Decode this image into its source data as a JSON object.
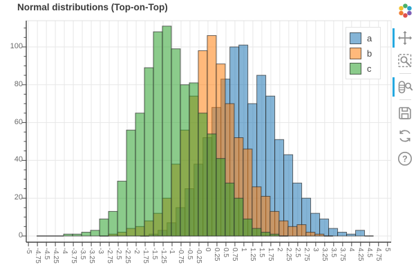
{
  "title": "Normal distributions (Top-on-Top)",
  "legend": {
    "items": [
      {
        "label": "a",
        "color": "#1f77b4"
      },
      {
        "label": "b",
        "color": "#ff7f0e"
      },
      {
        "label": "c",
        "color": "#2ca02c"
      }
    ]
  },
  "toolbar": {
    "logo": "bokeh-logo",
    "tools": [
      {
        "name": "pan",
        "active": true
      },
      {
        "name": "box-zoom",
        "active": false
      },
      {
        "name": "wheel-zoom",
        "active": true
      },
      {
        "name": "save",
        "active": false
      },
      {
        "name": "reset",
        "active": false
      },
      {
        "name": "help",
        "active": false
      }
    ],
    "active_indicator_color": "#26a9e0"
  },
  "chart_data": {
    "type": "bar",
    "subtype": "overlaid-histograms",
    "title": "Normal distributions (Top-on-Top)",
    "xlabel": "",
    "ylabel": "",
    "x_range": [
      -5.06,
      5.1
    ],
    "y_range": [
      -3.28,
      113.87
    ],
    "grid": true,
    "legend_position": "top_right",
    "fill_alpha": 0.55,
    "line_color": "#2f2f2f",
    "grid_color": "#e7e7e7",
    "axis_color": "#444444",
    "tick_label_color": "#696969",
    "xticks": {
      "values": [
        -5,
        -4.75,
        -4.5,
        -4.25,
        -4,
        -3.75,
        -3.5,
        -3.25,
        -3,
        -2.75,
        -2.5,
        -2.25,
        -2,
        -1.75,
        -1.5,
        -1.25,
        -1,
        -0.75,
        -0.5,
        -0.25,
        0,
        0.25,
        0.5,
        0.75,
        1,
        1.25,
        1.5,
        1.75,
        2,
        2.25,
        2.5,
        2.75,
        3,
        3.25,
        3.5,
        3.75,
        4,
        4.25,
        4.5,
        4.75,
        5
      ],
      "labels": [
        "-5",
        "-4.75",
        "-4.5",
        "-4.25",
        "-4",
        "-3.75",
        "-3.5",
        "-3.25",
        "-3",
        "-2.75",
        "-2.5",
        "-2.25",
        "-2",
        "-1.75",
        "-1.5",
        "-1.25",
        "-1",
        "-0.75",
        "-0.5",
        "-0.25",
        "0",
        "0.25",
        "0.5",
        "0.75",
        "1",
        "1.25",
        "1.5",
        "1.75",
        "2",
        "2.25",
        "2.5",
        "2.75",
        "3",
        "3.25",
        "3.5",
        "3.75",
        "4",
        "4.25",
        "4.5",
        "4.75",
        "5"
      ]
    },
    "yticks": {
      "values": [
        0,
        20,
        40,
        60,
        80,
        100
      ],
      "labels": [
        "0",
        "20",
        "40",
        "60",
        "80",
        "100"
      ]
    },
    "y_minor_step": 5,
    "bin_width": 0.25,
    "series": [
      {
        "name": "a",
        "color": "#1f77b4",
        "bin_start": -1.89,
        "counts": [
          0,
          1,
          3,
          7,
          15,
          25,
          38,
          52,
          68,
          83,
          100,
          101,
          70,
          85,
          74,
          51,
          43,
          28,
          20,
          12,
          9,
          4,
          2,
          1,
          3,
          0
        ]
      },
      {
        "name": "b",
        "color": "#ff7f0e",
        "bin_start": -3.02,
        "counts": [
          0,
          1,
          2,
          4,
          5,
          8,
          12,
          20,
          38,
          56,
          74,
          98,
          106,
          91,
          70,
          52,
          46,
          26,
          21,
          13,
          8,
          5,
          6,
          2,
          1,
          0
        ]
      },
      {
        "name": "c",
        "color": "#2ca02c",
        "bin_start": -4.77,
        "counts": [
          0,
          0,
          0,
          1,
          1,
          2,
          3,
          9,
          13,
          29,
          56,
          65,
          89,
          108,
          111,
          99,
          80,
          81,
          65,
          54,
          41,
          28,
          20,
          9,
          4,
          2,
          1,
          0
        ]
      }
    ]
  }
}
